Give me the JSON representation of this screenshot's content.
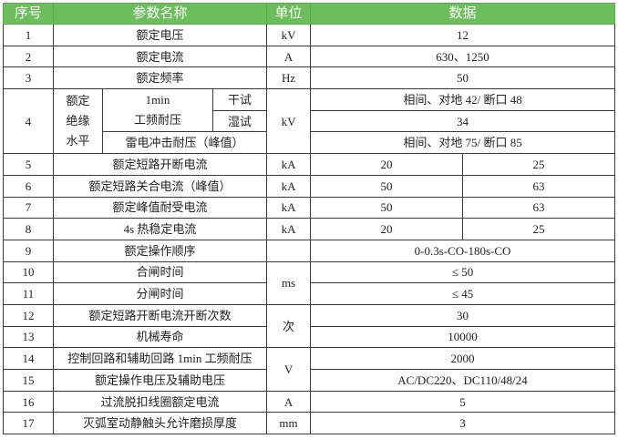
{
  "header": {
    "no": "序号",
    "param": "参数名称",
    "unit": "单位",
    "data": "数据"
  },
  "header_color": "#6cbd5c",
  "rows": {
    "r1": {
      "no": "1",
      "param": "额定电压",
      "unit": "kV",
      "value": "12"
    },
    "r2": {
      "no": "2",
      "param": "额定电流",
      "unit": "A",
      "value": "630、1250"
    },
    "r3": {
      "no": "3",
      "param": "额定频率",
      "unit": "Hz",
      "value": "50"
    },
    "r4": {
      "no": "4",
      "group": [
        "额定",
        "绝缘",
        "水平"
      ],
      "pf": [
        "1min",
        "工频耐压"
      ],
      "dry": "干试",
      "wet": "湿试",
      "lightning": "雷电冲击耐压（峰值）",
      "unit": "kV",
      "dry_value": "相间、对地 42/ 断口 48",
      "wet_value": "34",
      "lightning_value": "相间、对地 75/ 断口 85"
    },
    "r5": {
      "no": "5",
      "param": "额定短路开断电流",
      "unit": "kA",
      "v1": "20",
      "v2": "25"
    },
    "r6": {
      "no": "6",
      "param": "额定短路关合电流（峰值）",
      "unit": "kA",
      "v1": "50",
      "v2": "63"
    },
    "r7": {
      "no": "7",
      "param": "额定峰值耐受电流",
      "unit": "kA",
      "v1": "50",
      "v2": "63"
    },
    "r8": {
      "no": "8",
      "param": "4s 热稳定电流",
      "unit": "kA",
      "v1": "20",
      "v2": "25"
    },
    "r9": {
      "no": "9",
      "param": "额定操作顺序",
      "unit": "",
      "value": "0-0.3s-CO-180s-CO"
    },
    "r10": {
      "no": "10",
      "param": "合闸时间",
      "unit": "ms",
      "value": "≤ 50"
    },
    "r11": {
      "no": "11",
      "param": "分闸时间",
      "value": "≤ 45"
    },
    "r12": {
      "no": "12",
      "param": "额定短路开断电流开断次数",
      "unit": "次",
      "value": "30"
    },
    "r13": {
      "no": "13",
      "param": "机械寿命",
      "value": "10000"
    },
    "r14": {
      "no": "14",
      "param": "控制回路和辅助回路 1min 工频耐压",
      "unit": "V",
      "value": "2000"
    },
    "r15": {
      "no": "15",
      "param": "额定操作电压及辅助电压",
      "value": "AC/DC220、DC110/48/24"
    },
    "r16": {
      "no": "16",
      "param": "过流脱扣线圈额定电流",
      "unit": "A",
      "value": "5"
    },
    "r17": {
      "no": "17",
      "param": "灭弧室动静触头允许磨损厚度",
      "unit": "mm",
      "value": "3"
    }
  }
}
